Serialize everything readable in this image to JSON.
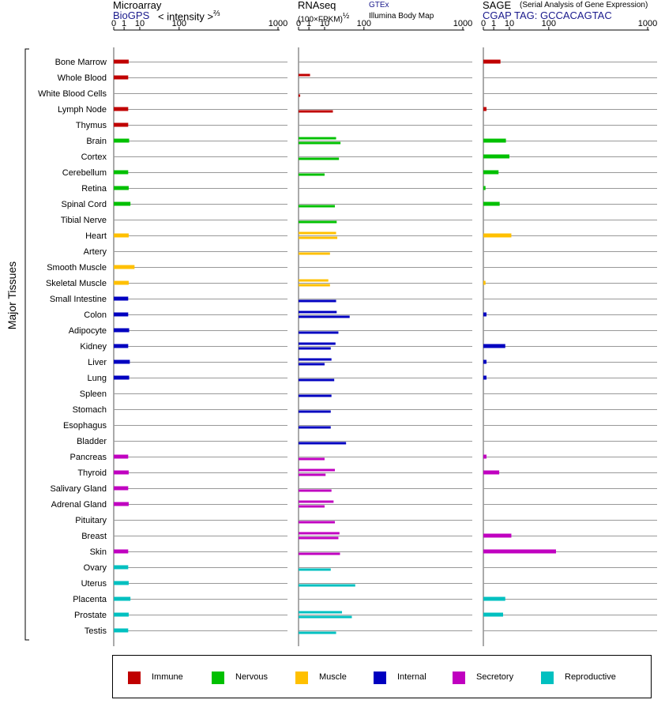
{
  "headers": {
    "microarray": {
      "title": "Microarray",
      "source": "BioGPS",
      "unit_prefix": "< intensity >",
      "unit_exp": "⅔"
    },
    "rnaseq": {
      "title": "RNAseq",
      "unit_prefix": "(100×FPKM)",
      "unit_exp": "½",
      "source1": "GTEx",
      "source2": "Illumina Body Map"
    },
    "sage": {
      "title": "SAGE",
      "subtitle": "(Serial Analysis of Gene Expression)",
      "tag": "CGAP TAG: GCCACAGTAC"
    }
  },
  "y_group_label": "Major Tissues",
  "legend": [
    {
      "label": "Immune",
      "color": "#c00000"
    },
    {
      "label": "Nervous",
      "color": "#00c000"
    },
    {
      "label": "Muscle",
      "color": "#ffc000"
    },
    {
      "label": "Internal",
      "color": "#0000c0"
    },
    {
      "label": "Secretory",
      "color": "#c000c0"
    },
    {
      "label": "Reproductive",
      "color": "#00c0c0"
    }
  ],
  "chart_data": {
    "type": "bar",
    "orientation": "horizontal",
    "x_scale": "power",
    "x_ticks": [
      "0",
      "1",
      "10",
      "100",
      "1000"
    ],
    "x_range": [
      0,
      1000
    ],
    "categories": [
      "Bone Marrow",
      "Whole Blood",
      "White Blood Cells",
      "Lymph Node",
      "Thymus",
      "Brain",
      "Cortex",
      "Cerebellum",
      "Retina",
      "Spinal Cord",
      "Tibial Nerve",
      "Heart",
      "Artery",
      "Smooth Muscle",
      "Skeletal Muscle",
      "Small Intestine",
      "Colon",
      "Adipocyte",
      "Kidney",
      "Liver",
      "Lung",
      "Spleen",
      "Stomach",
      "Esophagus",
      "Bladder",
      "Pancreas",
      "Thyroid",
      "Salivary Gland",
      "Adrenal Gland",
      "Pituitary",
      "Breast",
      "Skin",
      "Ovary",
      "Uterus",
      "Placenta",
      "Prostate",
      "Testis"
    ],
    "groups": [
      "Immune",
      "Immune",
      "Immune",
      "Immune",
      "Immune",
      "Nervous",
      "Nervous",
      "Nervous",
      "Nervous",
      "Nervous",
      "Nervous",
      "Muscle",
      "Muscle",
      "Muscle",
      "Muscle",
      "Internal",
      "Internal",
      "Internal",
      "Internal",
      "Internal",
      "Internal",
      "Internal",
      "Internal",
      "Internal",
      "Internal",
      "Secretory",
      "Secretory",
      "Secretory",
      "Secretory",
      "Secretory",
      "Secretory",
      "Secretory",
      "Reproductive",
      "Reproductive",
      "Reproductive",
      "Reproductive",
      "Reproductive"
    ],
    "panels": [
      {
        "name": "Microarray",
        "values": [
          2.5,
          2.3,
          null,
          2.3,
          2.3,
          2.7,
          null,
          2.3,
          2.5,
          3.3,
          null,
          2.5,
          null,
          5.7,
          2.5,
          2.3,
          2.3,
          2.7,
          2.3,
          3.0,
          2.7,
          null,
          null,
          null,
          null,
          2.3,
          2.5,
          2.3,
          2.5,
          null,
          null,
          2.3,
          2.3,
          2.5,
          3.3,
          2.5,
          2.3
        ]
      },
      {
        "name": "RNAseq GTEx",
        "values": [
          null,
          1.3,
          null,
          null,
          null,
          25,
          null,
          null,
          null,
          null,
          null,
          25,
          null,
          null,
          14,
          null,
          26,
          null,
          24,
          18,
          null,
          null,
          null,
          null,
          null,
          null,
          23,
          null,
          21,
          null,
          31,
          null,
          null,
          null,
          null,
          36,
          null
        ]
      },
      {
        "name": "RNAseq Illumina Body Map",
        "values": [
          null,
          null,
          0.01,
          20,
          null,
          33,
          30,
          10,
          null,
          23,
          26,
          27,
          16,
          null,
          16,
          25,
          54,
          29,
          17,
          10,
          22,
          18,
          17,
          17,
          45,
          10,
          11,
          18,
          10,
          23,
          29,
          32,
          17,
          70,
          null,
          60,
          25
        ]
      },
      {
        "name": "SAGE",
        "values": [
          3.5,
          null,
          null,
          0.05,
          null,
          7,
          10,
          2.6,
          0.02,
          3.1,
          null,
          12,
          null,
          null,
          0.02,
          null,
          0.05,
          null,
          6.5,
          0.05,
          0.05,
          null,
          null,
          null,
          null,
          0.05,
          2.9,
          null,
          null,
          null,
          12,
          130,
          null,
          null,
          6.5,
          5.0,
          null
        ]
      }
    ]
  }
}
